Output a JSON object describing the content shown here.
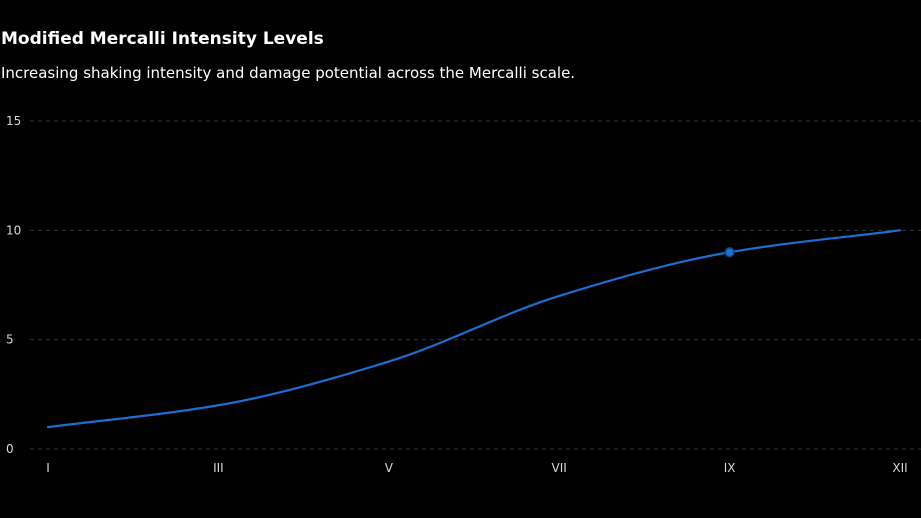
{
  "header": {
    "title": "Modified Mercalli Intensity Levels",
    "subtitle": "Increasing shaking intensity and damage potential across the Mercalli scale."
  },
  "colors": {
    "background": "#000000",
    "line": "#1a6fd1",
    "marker": "#1a6fd1",
    "grid": "#333333",
    "text": "#ffffff",
    "tick_text": "#d8d8d8"
  },
  "chart_data": {
    "type": "line",
    "title": "Modified Mercalli Intensity Levels",
    "subtitle": "Increasing shaking intensity and damage potential across the Mercalli scale.",
    "xlabel": "",
    "ylabel": "",
    "x_ticks": [
      "I",
      "III",
      "V",
      "VII",
      "IX",
      "XII"
    ],
    "y_ticks": [
      0,
      5,
      10,
      15
    ],
    "ylim": [
      0,
      15
    ],
    "grid": true,
    "grid_style": "dashed horizontal",
    "series": [
      {
        "x": [
          "I",
          "III",
          "V",
          "VII",
          "IX",
          "XII"
        ],
        "values": [
          1,
          2,
          4,
          7,
          9,
          10
        ]
      }
    ],
    "highlighted_point": {
      "x": "IX",
      "value": 9
    }
  }
}
